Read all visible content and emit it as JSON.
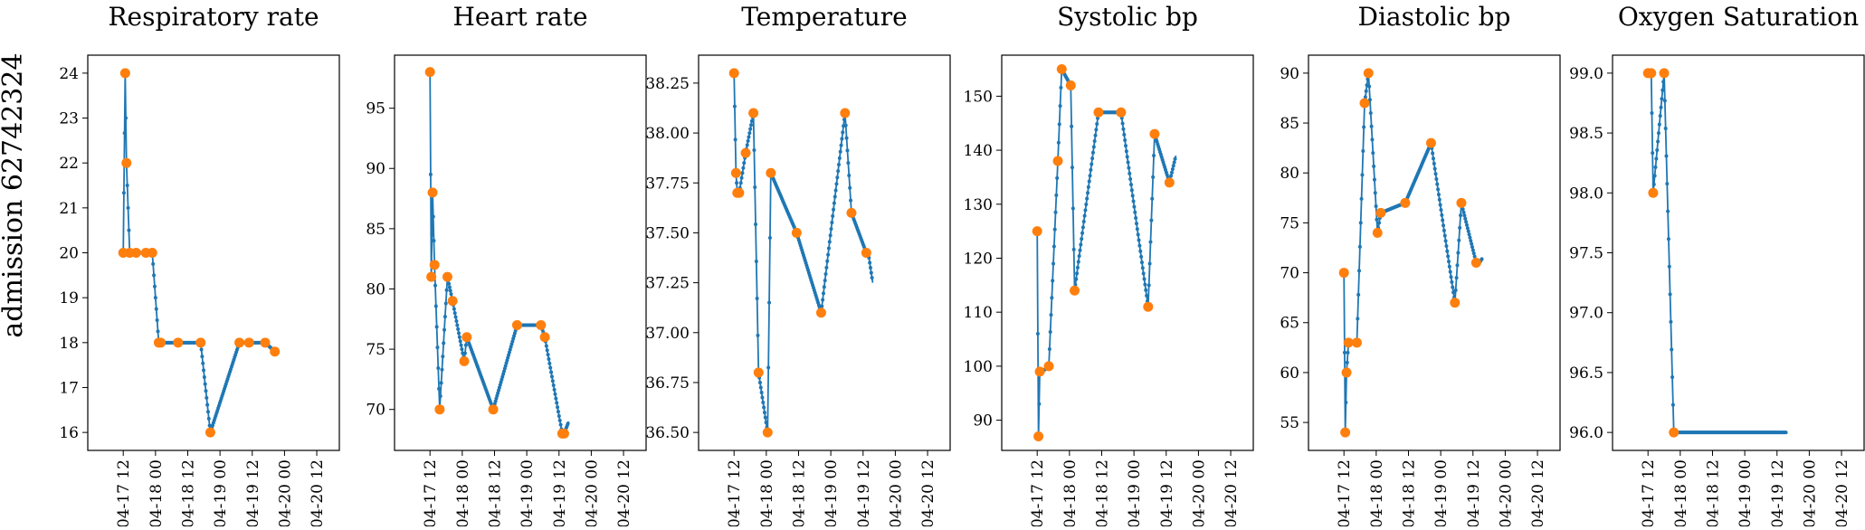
{
  "row_label": "admission 62742324",
  "colors": {
    "line": "#1f77b4",
    "marker": "#ff7f0e",
    "axis": "#000000"
  },
  "x_ticks": [
    "04-17 12",
    "04-18 00",
    "04-18 12",
    "04-19 00",
    "04-19 12",
    "04-20 00",
    "04-20 12"
  ],
  "chart_data": [
    {
      "type": "line",
      "title": "Respiratory rate",
      "xlim": [
        -0.55,
        3.35
      ],
      "ylim": [
        15.6,
        24.4
      ],
      "yticks": [
        "16",
        "17",
        "18",
        "19",
        "20",
        "21",
        "22",
        "23",
        "24"
      ],
      "series": [
        {
          "x": [
            0.0,
            0.03,
            0.05,
            0.1,
            0.2,
            0.35,
            0.45,
            0.55,
            0.58,
            0.85,
            1.2,
            1.35,
            1.8,
            1.95,
            2.2,
            2.35
          ],
          "y": [
            20,
            24,
            22,
            20,
            20,
            20,
            20,
            18,
            18,
            18,
            18,
            16,
            18,
            18,
            18,
            17.8
          ]
        }
      ],
      "markers": [
        {
          "x": [
            0.0,
            0.03,
            0.05,
            0.1,
            0.2,
            0.35,
            0.45,
            0.55,
            0.58,
            0.85,
            1.2,
            1.35,
            1.8,
            1.95,
            2.2,
            2.35
          ],
          "y": [
            20,
            24,
            22,
            20,
            20,
            20,
            20,
            18,
            18,
            18,
            18,
            16,
            18,
            18,
            18,
            17.8
          ]
        }
      ]
    },
    {
      "type": "line",
      "title": "Heart rate",
      "xlim": [
        -0.55,
        3.35
      ],
      "ylim": [
        66.6,
        99.4
      ],
      "yticks": [
        "70",
        "75",
        "80",
        "85",
        "90",
        "95"
      ],
      "series": [
        {
          "x": [
            0.0,
            0.02,
            0.04,
            0.07,
            0.15,
            0.27,
            0.35,
            0.53,
            0.57,
            0.98,
            1.35,
            1.72,
            1.78,
            2.05,
            2.08,
            2.15
          ],
          "y": [
            98,
            81,
            88,
            82,
            70,
            81,
            79,
            74,
            76,
            70,
            77,
            77,
            76,
            68,
            68,
            69
          ]
        }
      ],
      "markers": [
        {
          "x": [
            0.0,
            0.02,
            0.04,
            0.07,
            0.15,
            0.27,
            0.35,
            0.53,
            0.57,
            0.98,
            1.35,
            1.72,
            1.78,
            2.05,
            2.08
          ],
          "y": [
            98,
            81,
            88,
            82,
            70,
            81,
            79,
            74,
            76,
            70,
            77,
            77,
            76,
            68,
            68
          ]
        }
      ]
    },
    {
      "type": "line",
      "title": "Temperature",
      "xlim": [
        -0.55,
        3.35
      ],
      "ylim": [
        36.41,
        38.39
      ],
      "yticks": [
        "36.50",
        "36.75",
        "37.00",
        "37.25",
        "37.50",
        "37.75",
        "38.00",
        "38.25"
      ],
      "series": [
        {
          "x": [
            0.0,
            0.03,
            0.05,
            0.08,
            0.18,
            0.3,
            0.38,
            0.52,
            0.57,
            0.97,
            1.35,
            1.72,
            1.82,
            2.05,
            2.08,
            2.15
          ],
          "y": [
            38.3,
            37.8,
            37.7,
            37.7,
            37.9,
            38.1,
            36.8,
            36.5,
            37.8,
            37.5,
            37.1,
            38.1,
            37.6,
            37.4,
            37.4,
            37.25
          ]
        }
      ],
      "markers": [
        {
          "x": [
            0.0,
            0.03,
            0.05,
            0.08,
            0.18,
            0.3,
            0.38,
            0.52,
            0.57,
            0.97,
            1.35,
            1.72,
            1.82,
            2.05
          ],
          "y": [
            38.3,
            37.8,
            37.7,
            37.7,
            37.9,
            38.1,
            36.8,
            36.5,
            37.8,
            37.5,
            37.1,
            38.1,
            37.6,
            37.4
          ]
        }
      ]
    },
    {
      "type": "line",
      "title": "Systolic bp",
      "xlim": [
        -0.55,
        3.35
      ],
      "ylim": [
        84.4,
        157.6
      ],
      "yticks": [
        "90",
        "100",
        "110",
        "120",
        "130",
        "140",
        "150"
      ],
      "series": [
        {
          "x": [
            0.0,
            0.02,
            0.04,
            0.08,
            0.18,
            0.32,
            0.38,
            0.52,
            0.58,
            0.95,
            1.3,
            1.72,
            1.82,
            2.05,
            2.15
          ],
          "y": [
            125,
            87,
            99,
            99,
            100,
            138,
            155,
            152,
            114,
            147,
            147,
            111,
            143,
            134,
            139
          ]
        }
      ],
      "markers": [
        {
          "x": [
            0.0,
            0.02,
            0.04,
            0.18,
            0.32,
            0.38,
            0.52,
            0.58,
            0.95,
            1.3,
            1.72,
            1.82,
            2.05
          ],
          "y": [
            125,
            87,
            99,
            100,
            138,
            155,
            152,
            114,
            147,
            147,
            111,
            143,
            134
          ]
        }
      ]
    },
    {
      "type": "line",
      "title": "Diastolic bp",
      "xlim": [
        -0.55,
        3.35
      ],
      "ylim": [
        52.2,
        91.8
      ],
      "yticks": [
        "55",
        "60",
        "65",
        "70",
        "75",
        "80",
        "85",
        "90"
      ],
      "series": [
        {
          "x": [
            0.0,
            0.02,
            0.04,
            0.07,
            0.2,
            0.32,
            0.38,
            0.52,
            0.57,
            0.95,
            1.35,
            1.72,
            1.82,
            2.05,
            2.1,
            2.15
          ],
          "y": [
            70,
            54,
            60,
            63,
            63,
            87,
            90,
            74,
            76,
            77,
            83,
            67,
            77,
            71,
            71,
            71.5
          ]
        }
      ],
      "markers": [
        {
          "x": [
            0.0,
            0.02,
            0.04,
            0.07,
            0.2,
            0.32,
            0.38,
            0.52,
            0.57,
            0.95,
            1.35,
            1.72,
            1.82,
            2.05
          ],
          "y": [
            70,
            54,
            60,
            63,
            63,
            87,
            90,
            74,
            76,
            77,
            83,
            67,
            77,
            71
          ]
        }
      ]
    },
    {
      "type": "line",
      "title": "Oxygen Saturation",
      "xlim": [
        -0.55,
        3.35
      ],
      "ylim": [
        95.85,
        99.15
      ],
      "yticks": [
        "96.0",
        "96.5",
        "97.0",
        "97.5",
        "98.0",
        "98.5",
        "99.0"
      ],
      "series": [
        {
          "x": [
            0.0,
            0.03,
            0.05,
            0.08,
            0.25,
            0.4,
            0.6,
            1.0,
            1.5,
            2.0,
            2.15
          ],
          "y": [
            99,
            99,
            99,
            98,
            99,
            96,
            96,
            96,
            96,
            96,
            96
          ]
        }
      ],
      "markers": [
        {
          "x": [
            0.0,
            0.03,
            0.05,
            0.08,
            0.25,
            0.4
          ],
          "y": [
            99,
            99,
            99,
            98,
            99,
            96
          ]
        }
      ]
    }
  ]
}
